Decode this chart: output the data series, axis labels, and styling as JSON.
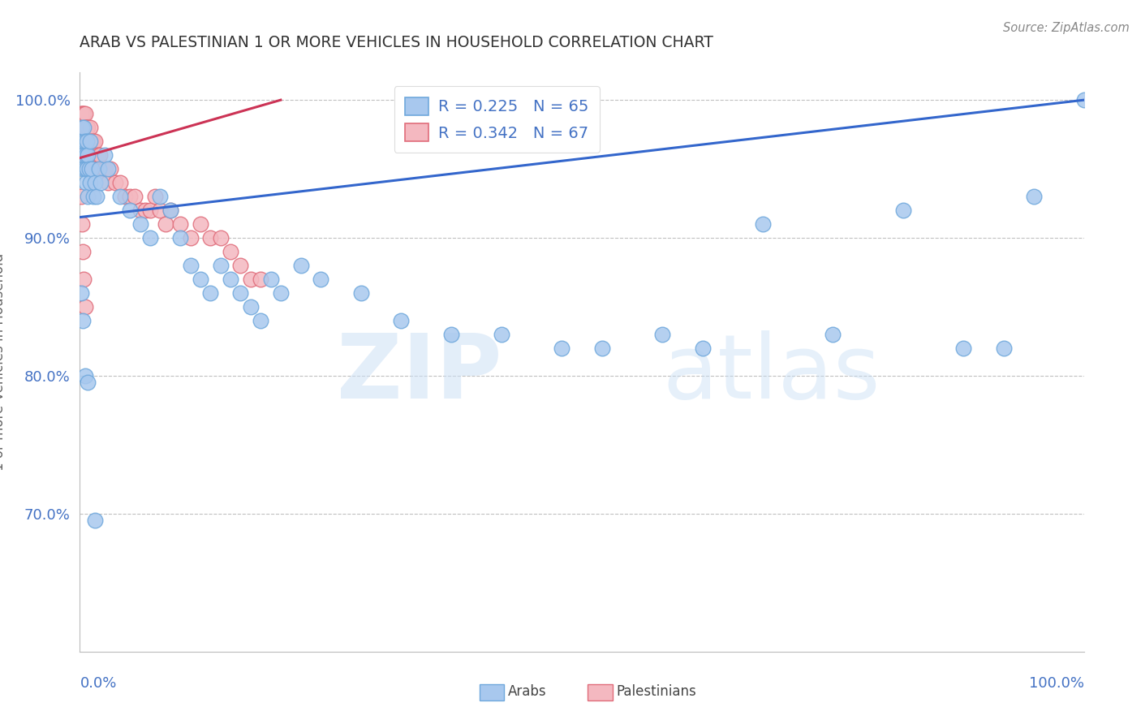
{
  "title": "ARAB VS PALESTINIAN 1 OR MORE VEHICLES IN HOUSEHOLD CORRELATION CHART",
  "source": "Source: ZipAtlas.com",
  "ylabel": "1 or more Vehicles in Household",
  "ytick_labels": [
    "70.0%",
    "80.0%",
    "90.0%",
    "100.0%"
  ],
  "yticks": [
    0.7,
    0.8,
    0.9,
    1.0
  ],
  "ylim": [
    0.6,
    1.02
  ],
  "xlim": [
    0.0,
    1.0
  ],
  "arab_color": "#6fa8dc",
  "arab_color_fill": "#a8c8ee",
  "palestinian_color": "#e06c7a",
  "palestinian_color_fill": "#f4b8c0",
  "arab_R": 0.225,
  "arab_N": 65,
  "palestinian_R": 0.342,
  "palestinian_N": 67,
  "legend_label_arab": "Arabs",
  "legend_label_palestinian": "Palestinians",
  "watermark_zip": "ZIP",
  "watermark_atlas": "atlas",
  "title_color": "#333333",
  "axis_color": "#4472c4",
  "grid_color": "#c0c0c0",
  "trend_arab_color": "#3366cc",
  "trend_pal_color": "#cc3355",
  "arab_x": [
    0.001,
    0.002,
    0.002,
    0.003,
    0.003,
    0.004,
    0.004,
    0.005,
    0.005,
    0.006,
    0.006,
    0.007,
    0.007,
    0.008,
    0.008,
    0.009,
    0.01,
    0.01,
    0.012,
    0.013,
    0.015,
    0.017,
    0.019,
    0.021,
    0.025,
    0.028,
    0.04,
    0.05,
    0.06,
    0.07,
    0.08,
    0.09,
    0.1,
    0.11,
    0.12,
    0.13,
    0.14,
    0.15,
    0.16,
    0.17,
    0.18,
    0.19,
    0.2,
    0.22,
    0.24,
    0.28,
    0.32,
    0.37,
    0.42,
    0.48,
    0.52,
    0.58,
    0.62,
    0.68,
    0.75,
    0.82,
    0.88,
    0.92,
    0.95,
    1.0,
    0.001,
    0.003,
    0.005,
    0.008,
    0.015
  ],
  "arab_y": [
    0.97,
    0.96,
    0.98,
    0.95,
    0.97,
    0.96,
    0.98,
    0.97,
    0.95,
    0.96,
    0.94,
    0.97,
    0.95,
    0.96,
    0.93,
    0.95,
    0.97,
    0.94,
    0.95,
    0.93,
    0.94,
    0.93,
    0.95,
    0.94,
    0.96,
    0.95,
    0.93,
    0.92,
    0.91,
    0.9,
    0.93,
    0.92,
    0.9,
    0.88,
    0.87,
    0.86,
    0.88,
    0.87,
    0.86,
    0.85,
    0.84,
    0.87,
    0.86,
    0.88,
    0.87,
    0.86,
    0.84,
    0.83,
    0.83,
    0.82,
    0.82,
    0.83,
    0.82,
    0.91,
    0.83,
    0.92,
    0.82,
    0.82,
    0.93,
    1.0,
    0.86,
    0.84,
    0.8,
    0.795,
    0.695
  ],
  "pal_x": [
    0.001,
    0.001,
    0.001,
    0.002,
    0.002,
    0.002,
    0.003,
    0.003,
    0.003,
    0.004,
    0.004,
    0.005,
    0.005,
    0.005,
    0.006,
    0.006,
    0.006,
    0.007,
    0.007,
    0.007,
    0.008,
    0.008,
    0.009,
    0.009,
    0.01,
    0.01,
    0.01,
    0.012,
    0.012,
    0.013,
    0.014,
    0.015,
    0.016,
    0.017,
    0.018,
    0.019,
    0.02,
    0.022,
    0.025,
    0.028,
    0.03,
    0.035,
    0.04,
    0.045,
    0.05,
    0.055,
    0.06,
    0.065,
    0.07,
    0.075,
    0.08,
    0.085,
    0.09,
    0.1,
    0.11,
    0.12,
    0.13,
    0.14,
    0.15,
    0.16,
    0.17,
    0.18,
    0.001,
    0.002,
    0.003,
    0.004,
    0.005
  ],
  "pal_y": [
    0.99,
    0.98,
    0.97,
    0.99,
    0.98,
    0.97,
    0.99,
    0.98,
    0.96,
    0.99,
    0.97,
    0.99,
    0.98,
    0.96,
    0.98,
    0.97,
    0.95,
    0.98,
    0.97,
    0.96,
    0.98,
    0.96,
    0.97,
    0.96,
    0.98,
    0.97,
    0.95,
    0.97,
    0.96,
    0.97,
    0.96,
    0.97,
    0.96,
    0.95,
    0.96,
    0.95,
    0.96,
    0.95,
    0.95,
    0.94,
    0.95,
    0.94,
    0.94,
    0.93,
    0.93,
    0.93,
    0.92,
    0.92,
    0.92,
    0.93,
    0.92,
    0.91,
    0.92,
    0.91,
    0.9,
    0.91,
    0.9,
    0.9,
    0.89,
    0.88,
    0.87,
    0.87,
    0.93,
    0.91,
    0.89,
    0.87,
    0.85
  ]
}
